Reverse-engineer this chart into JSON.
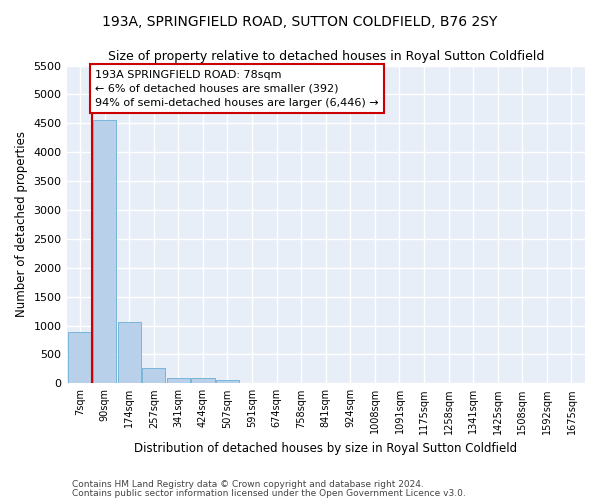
{
  "title": "193A, SPRINGFIELD ROAD, SUTTON COLDFIELD, B76 2SY",
  "subtitle": "Size of property relative to detached houses in Royal Sutton Coldfield",
  "xlabel": "Distribution of detached houses by size in Royal Sutton Coldfield",
  "ylabel": "Number of detached properties",
  "footnote1": "Contains HM Land Registry data © Crown copyright and database right 2024.",
  "footnote2": "Contains public sector information licensed under the Open Government Licence v3.0.",
  "bar_labels": [
    "7sqm",
    "90sqm",
    "174sqm",
    "257sqm",
    "341sqm",
    "424sqm",
    "507sqm",
    "591sqm",
    "674sqm",
    "758sqm",
    "841sqm",
    "924sqm",
    "1008sqm",
    "1091sqm",
    "1175sqm",
    "1258sqm",
    "1341sqm",
    "1425sqm",
    "1508sqm",
    "1592sqm",
    "1675sqm"
  ],
  "bar_values": [
    880,
    4560,
    1060,
    270,
    90,
    85,
    50,
    0,
    0,
    0,
    0,
    0,
    0,
    0,
    0,
    0,
    0,
    0,
    0,
    0,
    0
  ],
  "bar_color": "#b8d0ea",
  "bar_edge_color": "#6aaed6",
  "annotation_text": "193A SPRINGFIELD ROAD: 78sqm\n← 6% of detached houses are smaller (392)\n94% of semi-detached houses are larger (6,446) →",
  "annotation_box_color": "#ffffff",
  "annotation_box_edge": "#cc0000",
  "vline_color": "#cc0000",
  "ylim": [
    0,
    5500
  ],
  "background_color": "#e8eef8",
  "grid_color": "#ffffff",
  "yticks": [
    0,
    500,
    1000,
    1500,
    2000,
    2500,
    3000,
    3500,
    4000,
    4500,
    5000,
    5500
  ]
}
